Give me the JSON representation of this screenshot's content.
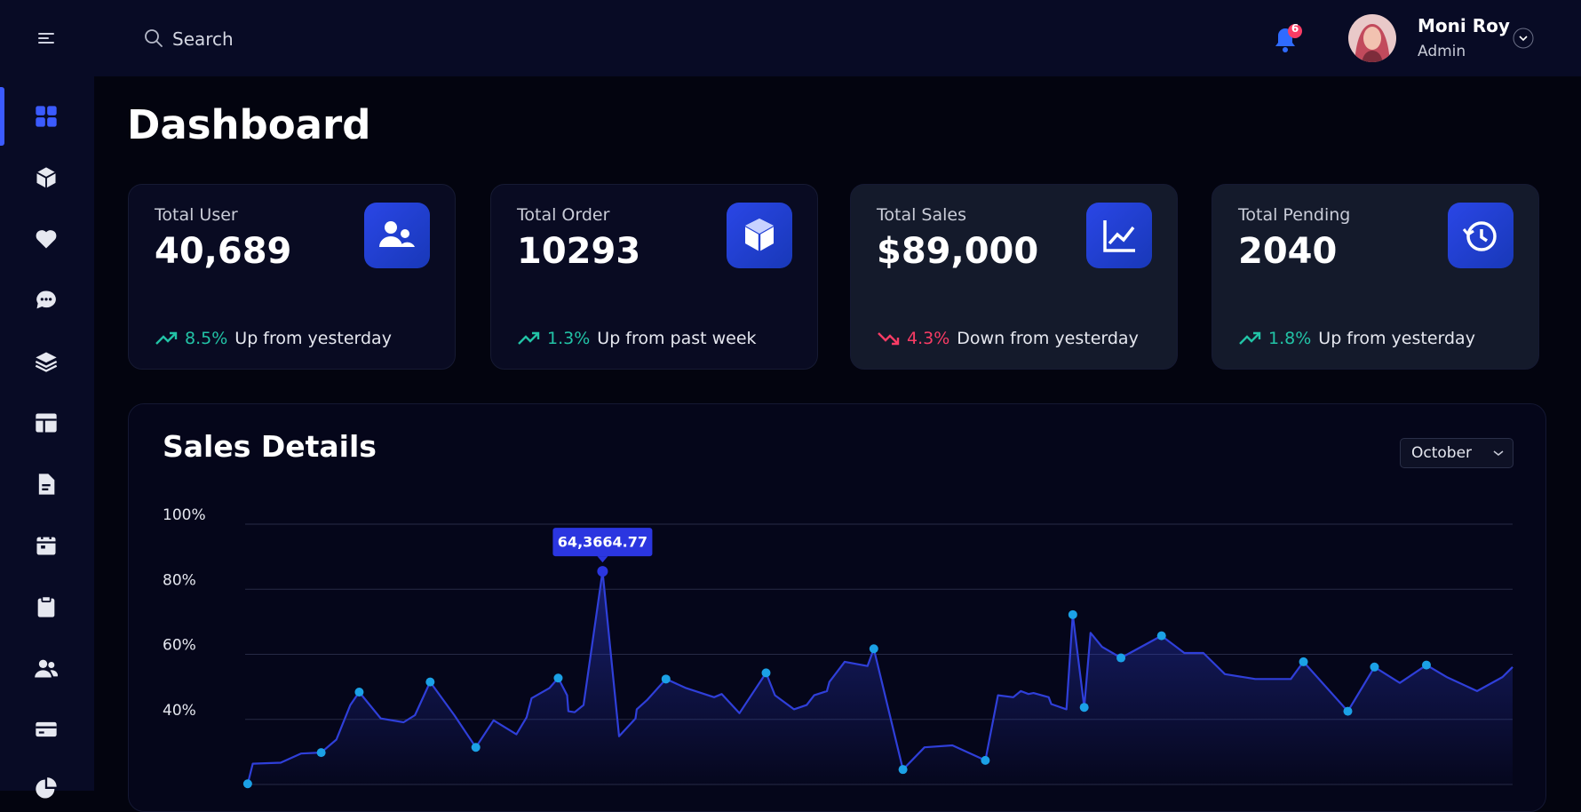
{
  "header": {
    "search_placeholder": "Search",
    "notification_count": 6,
    "user_name": "Moni Roy",
    "user_role": "Admin"
  },
  "page_title": "Dashboard",
  "cards": [
    {
      "title": "Total User",
      "value": "40,689",
      "change": "8.5%",
      "note": "Up from yesterday",
      "trend": "up"
    },
    {
      "title": "Total Order",
      "value": "10293",
      "change": "1.3%",
      "note": "Up from past week",
      "trend": "up"
    },
    {
      "title": "Total Sales",
      "value": "$89,000",
      "change": "4.3%",
      "note": "Down from yesterday",
      "trend": "down"
    },
    {
      "title": "Total Pending",
      "value": "2040",
      "change": "1.8%",
      "note": "Up from yesterday",
      "trend": "up"
    }
  ],
  "month_select": "October",
  "chart_data": {
    "type": "area",
    "title": "Sales Details",
    "color": "#2f3fd9",
    "marker_color": "#1ba1e6",
    "x": [
      0.2,
      0.6,
      2.8,
      4.4,
      6.0,
      7.2,
      8.3,
      9.0,
      10.7,
      12.5,
      13.4,
      14.6,
      16.5,
      18.2,
      19.6,
      21.4,
      22.2,
      22.6,
      24.0,
      24.7,
      25.4,
      25.5,
      26.0,
      26.7,
      28.2,
      29.5,
      30.8,
      30.9,
      31.7,
      33.2,
      34.8,
      37.0,
      37.6,
      39.0,
      41.1,
      41.8,
      43.3,
      44.3,
      44.9,
      45.9,
      46.1,
      47.3,
      49.1,
      49.6,
      51.9,
      53.6,
      55.8,
      58.4,
      59.4,
      60.6,
      61.2,
      61.8,
      62.2,
      63.4,
      63.6,
      64.8,
      65.3,
      66.2,
      66.7,
      67.6,
      69.1,
      72.3,
      74.1,
      75.6,
      77.3,
      79.7,
      82.5,
      83.5,
      87.0,
      89.1,
      91.1,
      93.2,
      94.8,
      97.2,
      99.2,
      100
    ],
    "values": [
      20.2,
      26.4,
      26.7,
      29.5,
      29.8,
      33.8,
      44.4,
      48.4,
      40.3,
      39.1,
      41.3,
      51.5,
      41.3,
      31.4,
      39.7,
      35.4,
      40.6,
      46.5,
      49.6,
      52.7,
      47.4,
      42.5,
      42.2,
      44.4,
      85.5,
      34.8,
      40.3,
      43.1,
      45.9,
      52.4,
      49.6,
      46.8,
      47.8,
      41.9,
      54.3,
      47.4,
      43.1,
      44.4,
      47.4,
      48.7,
      51.5,
      57.7,
      56.4,
      61.7,
      24.6,
      31.4,
      32.0,
      27.4,
      47.4,
      46.8,
      48.7,
      47.8,
      48.1,
      46.8,
      44.7,
      43.1,
      72.2,
      43.7,
      66.6,
      62.3,
      58.9,
      65.7,
      60.4,
      60.4,
      53.9,
      52.4,
      52.4,
      57.7,
      42.5,
      56.1,
      51.2,
      56.7,
      53.0,
      48.7,
      53.0,
      56.1
    ],
    "markers": [
      0,
      4,
      7,
      11,
      13,
      19,
      24,
      29,
      34,
      43,
      44,
      47,
      56,
      57,
      60,
      61,
      67,
      68,
      69,
      71
    ],
    "tooltip": {
      "index": 24,
      "label": "64,3664.77"
    },
    "xlim": [
      0,
      100
    ],
    "ylim": [
      20,
      100
    ],
    "yticks": [
      {
        "value": 40,
        "label": "40%"
      },
      {
        "value": 60,
        "label": "60%"
      },
      {
        "value": 80,
        "label": "80%"
      },
      {
        "value": 100,
        "label": "100%"
      }
    ],
    "grid": true
  }
}
